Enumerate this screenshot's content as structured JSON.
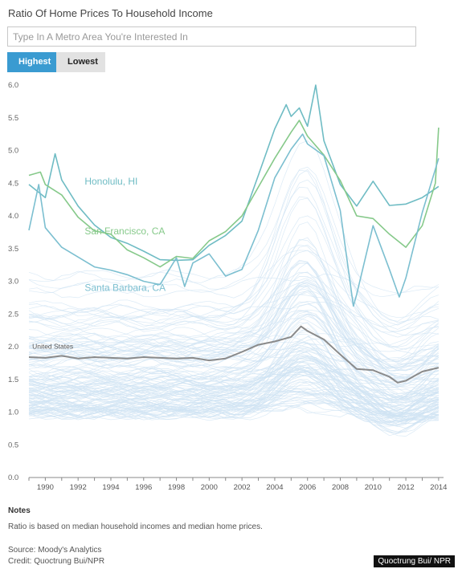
{
  "header": {
    "title": "Ratio Of Home Prices To Household Income"
  },
  "search": {
    "placeholder": "Type In A Metro Area You're Interested In",
    "value": ""
  },
  "tabs": [
    {
      "label": "Highest",
      "active": true
    },
    {
      "label": "Lowest",
      "active": false
    }
  ],
  "notes": {
    "heading": "Notes",
    "text": "Ratio is based on median household incomes and median home prices.",
    "source": "Source: Moody's Analytics",
    "credit": "Credit: Quoctrung Bui/NPR"
  },
  "watermark": "Quoctrung Bui/ NPR",
  "colors": {
    "accent": "#3a9bd1",
    "background_lines": "#cfe3f3",
    "us_line": "#8a8a8a",
    "honolulu": "#6fbcc4",
    "san_francisco": "#86c98a",
    "santa_barbara": "#7cbfd0"
  },
  "chart_data": {
    "type": "line",
    "xlabel": "",
    "ylabel": "",
    "xlim": [
      1989,
      2014.3
    ],
    "ylim": [
      0,
      6
    ],
    "x_ticks": [
      "1990",
      "1992",
      "1994",
      "1996",
      "1998",
      "2000",
      "2002",
      "2004",
      "2006",
      "2008",
      "2010",
      "2012",
      "2014"
    ],
    "y_ticks": [
      "0.0",
      "0.5",
      "1.0",
      "1.5",
      "2.0",
      "2.5",
      "3.0",
      "3.5",
      "4.0",
      "4.5",
      "5.0",
      "5.5",
      "6.0"
    ],
    "grid": false,
    "series": [
      {
        "name": "United States",
        "color": "#8a8a8a",
        "x": [
          1989,
          1990,
          1991,
          1992,
          1993,
          1994,
          1995,
          1996,
          1997,
          1998,
          1999,
          2000,
          2001,
          2002,
          2003,
          2004,
          2005,
          2005.6,
          2006,
          2007,
          2008,
          2009,
          2010,
          2011,
          2011.5,
          2012,
          2013,
          2014
        ],
        "y": [
          1.84,
          1.83,
          1.86,
          1.82,
          1.84,
          1.83,
          1.82,
          1.84,
          1.83,
          1.82,
          1.83,
          1.79,
          1.82,
          1.92,
          2.03,
          2.08,
          2.15,
          2.31,
          2.24,
          2.11,
          1.88,
          1.66,
          1.64,
          1.54,
          1.45,
          1.48,
          1.62,
          1.68
        ]
      },
      {
        "name": "Honolulu, HI",
        "color": "#6fbcc4",
        "x": [
          1989,
          1990,
          1990.6,
          1991,
          1992,
          1993,
          1994,
          1995,
          1996,
          1997,
          1998,
          1999,
          2000,
          2001,
          2002,
          2003,
          2004,
          2004.7,
          2005,
          2005.5,
          2006,
          2006.5,
          2007,
          2008,
          2009,
          2010,
          2011,
          2012,
          2013,
          2014
        ],
        "y": [
          4.48,
          4.28,
          4.95,
          4.55,
          4.15,
          3.86,
          3.67,
          3.58,
          3.46,
          3.33,
          3.32,
          3.33,
          3.55,
          3.7,
          3.92,
          4.62,
          5.33,
          5.7,
          5.52,
          5.65,
          5.37,
          6.0,
          5.15,
          4.48,
          4.15,
          4.53,
          4.16,
          4.18,
          4.28,
          4.45
        ]
      },
      {
        "name": "San Francisco, CA",
        "color": "#86c98a",
        "x": [
          1989,
          1989.7,
          1990,
          1991,
          1992,
          1993,
          1994,
          1995,
          1996,
          1997,
          1998,
          1999,
          2000,
          2001,
          2002,
          2003,
          2004,
          2005,
          2005.5,
          2006,
          2007,
          2008,
          2009,
          2010,
          2011,
          2012,
          2013,
          2013.8,
          2014
        ],
        "y": [
          4.62,
          4.67,
          4.48,
          4.32,
          3.98,
          3.77,
          3.72,
          3.48,
          3.36,
          3.22,
          3.38,
          3.35,
          3.62,
          3.76,
          4.0,
          4.44,
          4.88,
          5.28,
          5.46,
          5.22,
          4.93,
          4.54,
          4.0,
          3.96,
          3.72,
          3.52,
          3.85,
          4.5,
          5.35
        ]
      },
      {
        "name": "Santa Barbara, CA",
        "color": "#7cbfd0",
        "x": [
          1989,
          1989.6,
          1990,
          1991,
          1992,
          1993,
          1994,
          1995,
          1996,
          1997,
          1998,
          1998.5,
          1999,
          2000,
          2001,
          2002,
          2003,
          2004,
          2005,
          2005.7,
          2006,
          2007,
          2008,
          2008.8,
          2009,
          2010,
          2011,
          2011.6,
          2012,
          2013,
          2014
        ],
        "y": [
          3.78,
          4.48,
          3.82,
          3.52,
          3.37,
          3.22,
          3.17,
          3.1,
          3.0,
          2.95,
          3.36,
          2.92,
          3.28,
          3.42,
          3.08,
          3.18,
          3.78,
          4.58,
          5.02,
          5.25,
          5.1,
          4.92,
          4.08,
          2.62,
          2.8,
          3.85,
          3.18,
          2.76,
          3.05,
          4.05,
          4.88
        ]
      }
    ],
    "annotations": [
      {
        "text": "Honolulu, HI",
        "x": 1992.4,
        "y": 4.48
      },
      {
        "text": "San Francisco, CA",
        "x": 1992.4,
        "y": 3.72
      },
      {
        "text": "Santa Barbara, CA",
        "x": 1992.4,
        "y": 2.85
      },
      {
        "text": "United States",
        "x": 1989.2,
        "y": 1.97
      }
    ]
  }
}
